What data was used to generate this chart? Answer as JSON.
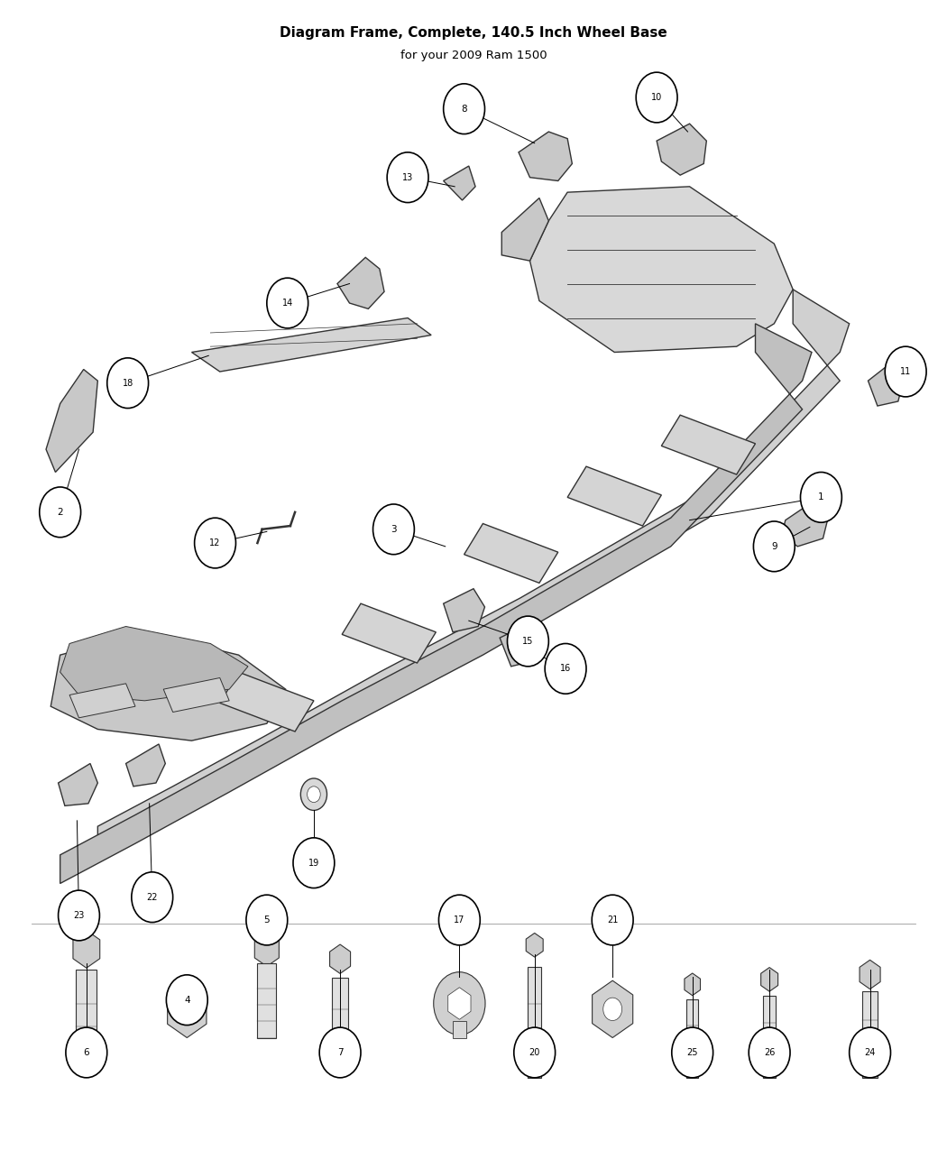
{
  "title": "Diagram Frame, Complete, 140.5 Inch Wheel Base",
  "subtitle": "for your 2009 Ram 1500",
  "bg_color": "#ffffff",
  "line_color": "#333333",
  "fig_width": 10.5,
  "fig_height": 12.75
}
